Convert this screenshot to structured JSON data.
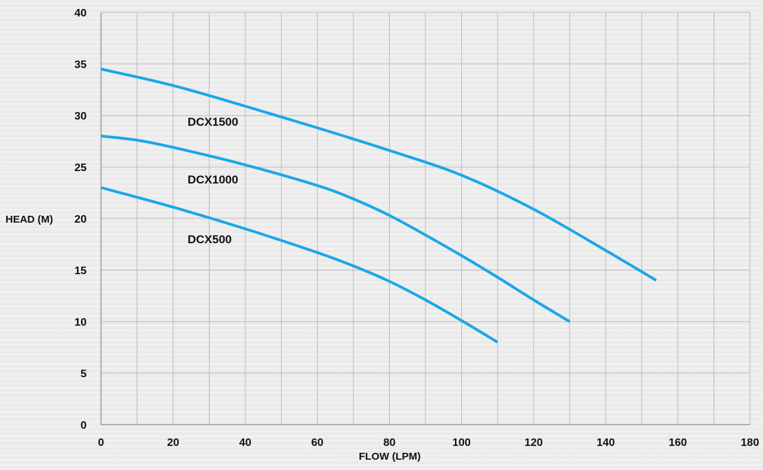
{
  "chart_data": {
    "type": "line",
    "xlabel": "FLOW (LPM)",
    "ylabel": "HEAD (M)",
    "xlim": [
      0,
      180
    ],
    "ylim": [
      0,
      40
    ],
    "x_ticks": [
      0,
      20,
      40,
      60,
      80,
      100,
      120,
      140,
      160,
      180
    ],
    "y_ticks": [
      0,
      5,
      10,
      15,
      20,
      25,
      30,
      35,
      40
    ],
    "grid": true,
    "line_color": "#1aa7e8",
    "series": [
      {
        "name": "DCX1500",
        "x": [
          0,
          20,
          40,
          60,
          80,
          100,
          120,
          140,
          154
        ],
        "y": [
          34.5,
          32.9,
          30.9,
          28.8,
          26.6,
          24.2,
          20.9,
          16.9,
          14
        ]
      },
      {
        "name": "DCX1000",
        "x": [
          0,
          10,
          20,
          40,
          60,
          70,
          80,
          90,
          100,
          110,
          120,
          130
        ],
        "y": [
          28,
          27.6,
          26.9,
          25.2,
          23.2,
          21.9,
          20.3,
          18.4,
          16.4,
          14.3,
          12.1,
          10
        ]
      },
      {
        "name": "DCX500",
        "x": [
          0,
          20,
          40,
          60,
          70,
          80,
          90,
          100,
          110
        ],
        "y": [
          23,
          21.1,
          19,
          16.7,
          15.4,
          13.9,
          12.1,
          10.1,
          8
        ]
      }
    ],
    "series_label_positions": [
      {
        "name": "DCX1500",
        "x": 24,
        "y": 29.4
      },
      {
        "name": "DCX1000",
        "x": 24,
        "y": 23.8
      },
      {
        "name": "DCX500",
        "x": 24,
        "y": 18.0
      }
    ]
  }
}
